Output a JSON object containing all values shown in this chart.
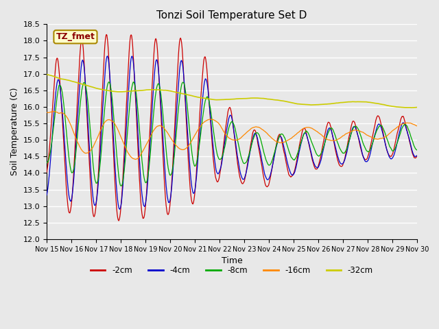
{
  "title": "Tonzi Soil Temperature Set D",
  "xlabel": "Time",
  "ylabel": "Soil Temperature (C)",
  "ylim": [
    12.0,
    18.5
  ],
  "yticks": [
    12.0,
    12.5,
    13.0,
    13.5,
    14.0,
    14.5,
    15.0,
    15.5,
    16.0,
    16.5,
    17.0,
    17.5,
    18.0,
    18.5
  ],
  "xtick_labels": [
    "Nov 15",
    "Nov 16",
    "Nov 17",
    "Nov 18",
    "Nov 19",
    "Nov 20",
    "Nov 21",
    "Nov 22",
    "Nov 23",
    "Nov 24",
    "Nov 25",
    "Nov 26",
    "Nov 27",
    "Nov 28",
    "Nov 29",
    "Nov 30"
  ],
  "legend_labels": [
    "-2cm",
    "-4cm",
    "-8cm",
    "-16cm",
    "-32cm"
  ],
  "colors": [
    "#cc0000",
    "#0000cc",
    "#00aa00",
    "#ff8800",
    "#cccc00"
  ],
  "annotation_text": "TZ_fmet",
  "annotation_text_color": "#8b0000",
  "annotation_bg_color": "#ffffcc",
  "annotation_edge_color": "#aa8800",
  "plot_bg_color": "#e8e8e8",
  "fig_bg_color": "#e8e8e8",
  "grid_color": "#ffffff",
  "title_fontsize": 11
}
